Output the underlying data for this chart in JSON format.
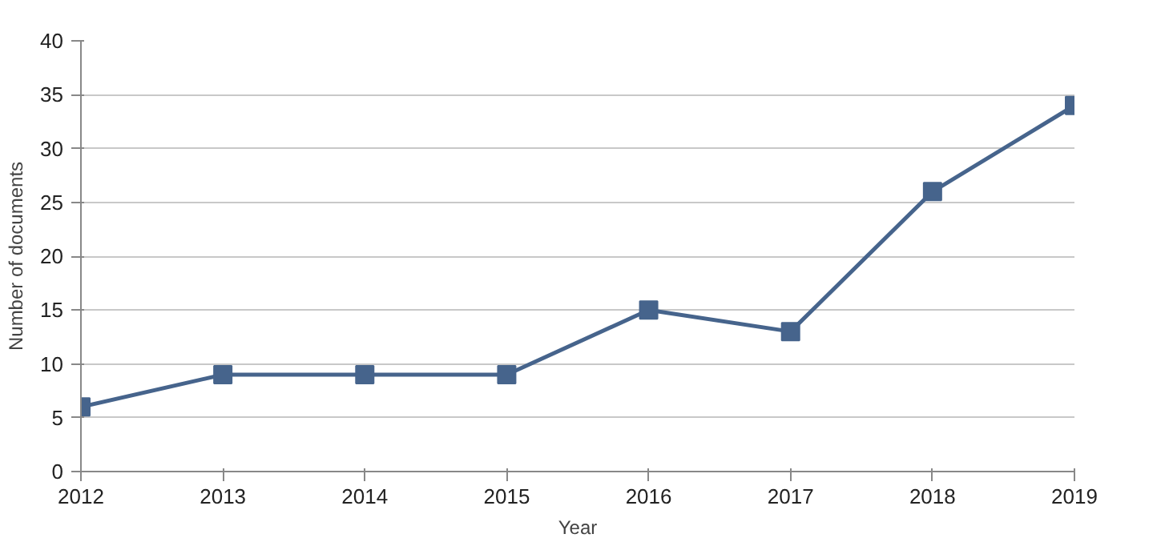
{
  "chart_data": {
    "type": "line",
    "xlabel": "Year",
    "ylabel": "Number of documents",
    "x": [
      2012,
      2013,
      2014,
      2015,
      2016,
      2017,
      2018,
      2019
    ],
    "series": [
      {
        "color": "#46648c",
        "values": [
          6,
          9,
          9,
          9,
          15,
          13,
          26,
          34
        ]
      }
    ],
    "xlim": [
      2012,
      2019
    ],
    "xticks": [
      2012,
      2013,
      2014,
      2015,
      2016,
      2017,
      2018,
      2019
    ],
    "ylim": [
      0,
      40
    ],
    "yticks": [
      0,
      5,
      10,
      15,
      20,
      25,
      30,
      35,
      40
    ],
    "grid": "y",
    "marker": "square",
    "line_style": "solid"
  }
}
